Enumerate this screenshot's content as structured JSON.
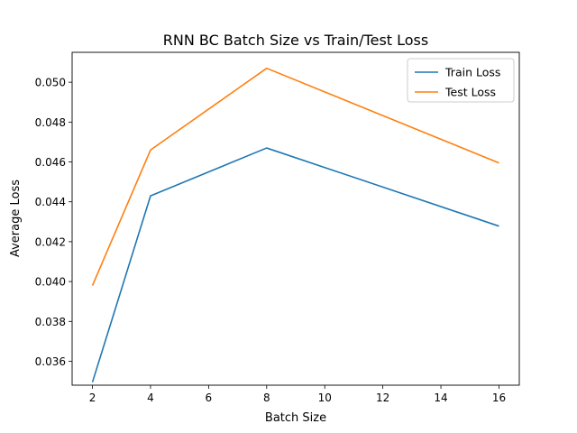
{
  "chart_data": {
    "type": "line",
    "title": "RNN BC Batch Size vs Train/Test Loss",
    "xlabel": "Batch Size",
    "ylabel": "Average Loss",
    "x": [
      2,
      4,
      8,
      16
    ],
    "series": [
      {
        "name": "Train Loss",
        "color": "#1f77b4",
        "values": [
          0.03495,
          0.0443,
          0.0467,
          0.04278
        ]
      },
      {
        "name": "Test Loss",
        "color": "#ff7f0e",
        "values": [
          0.0398,
          0.0466,
          0.0507,
          0.04595
        ]
      }
    ],
    "xlim": [
      1.3,
      16.7
    ],
    "ylim": [
      0.0348,
      0.0515
    ],
    "xticks": [
      2,
      4,
      6,
      8,
      10,
      12,
      14,
      16
    ],
    "yticks": [
      0.036,
      0.038,
      0.04,
      0.042,
      0.044,
      0.046,
      0.048,
      0.05
    ],
    "yticks_labels": [
      "0.036",
      "0.038",
      "0.040",
      "0.042",
      "0.044",
      "0.046",
      "0.048",
      "0.050"
    ],
    "grid": false,
    "legend_position": "top-right"
  }
}
